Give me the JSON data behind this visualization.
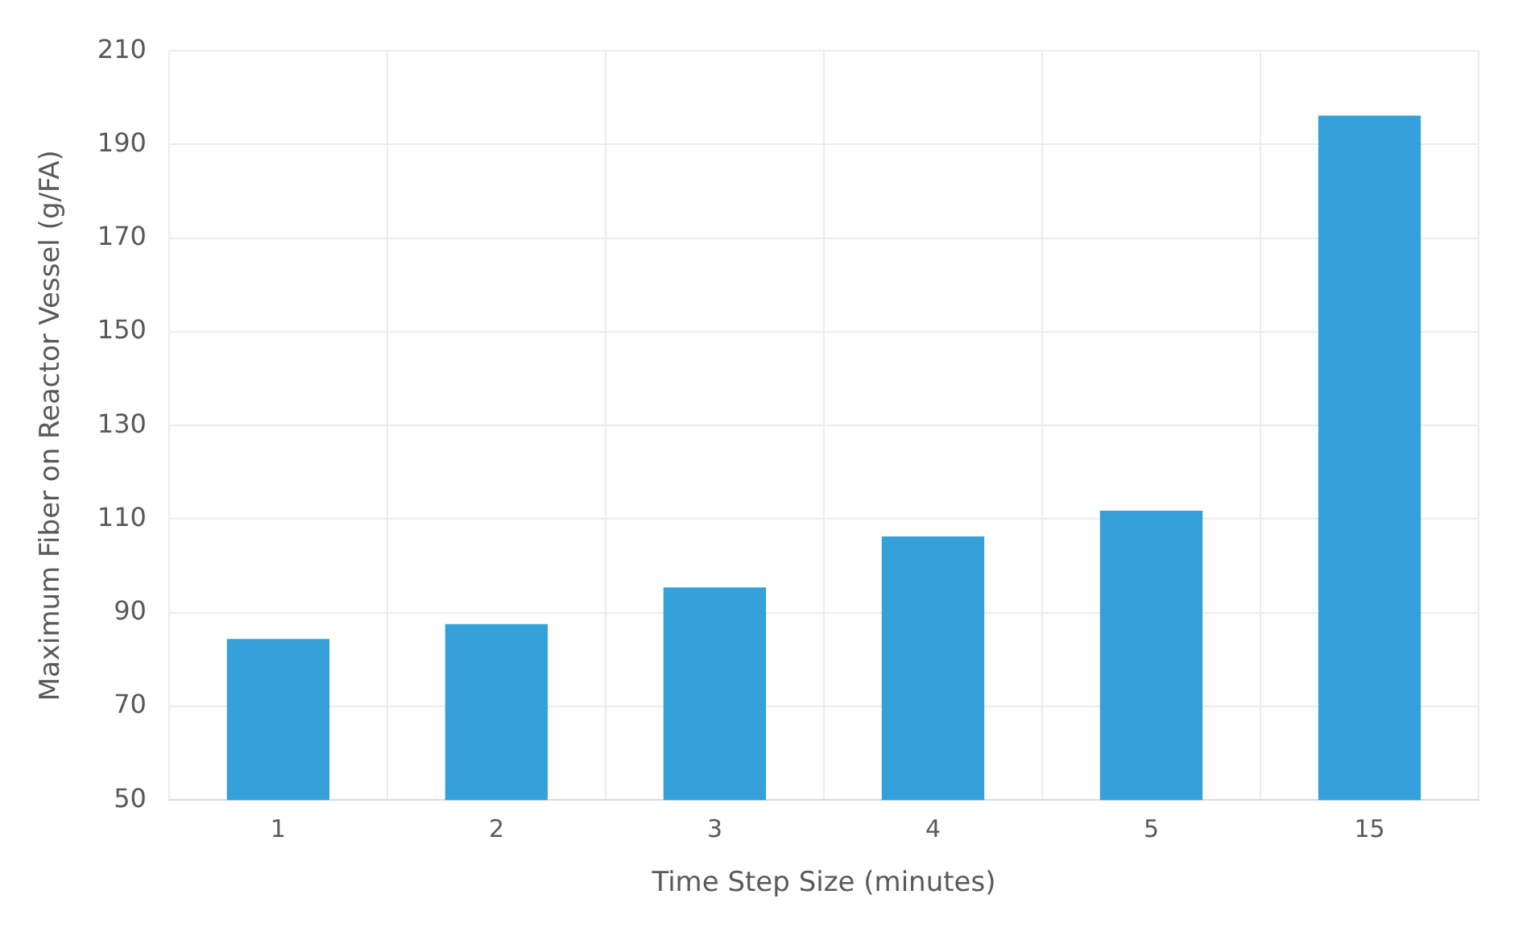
{
  "chart_data": {
    "type": "bar",
    "xlabel": "Time Step Size (minutes)",
    "ylabel": "Maximum Fiber on Reactor Vessel (g/FA)",
    "categories": [
      "1",
      "2",
      "3",
      "4",
      "5",
      "15"
    ],
    "values": [
      84.4,
      87.6,
      95.4,
      106.3,
      111.8,
      196.2
    ],
    "color": "#36a0da",
    "ylim": [
      50,
      210
    ],
    "yticks": [
      50,
      70,
      90,
      110,
      130,
      150,
      170,
      190,
      210
    ],
    "grid": true,
    "legend": false
  }
}
